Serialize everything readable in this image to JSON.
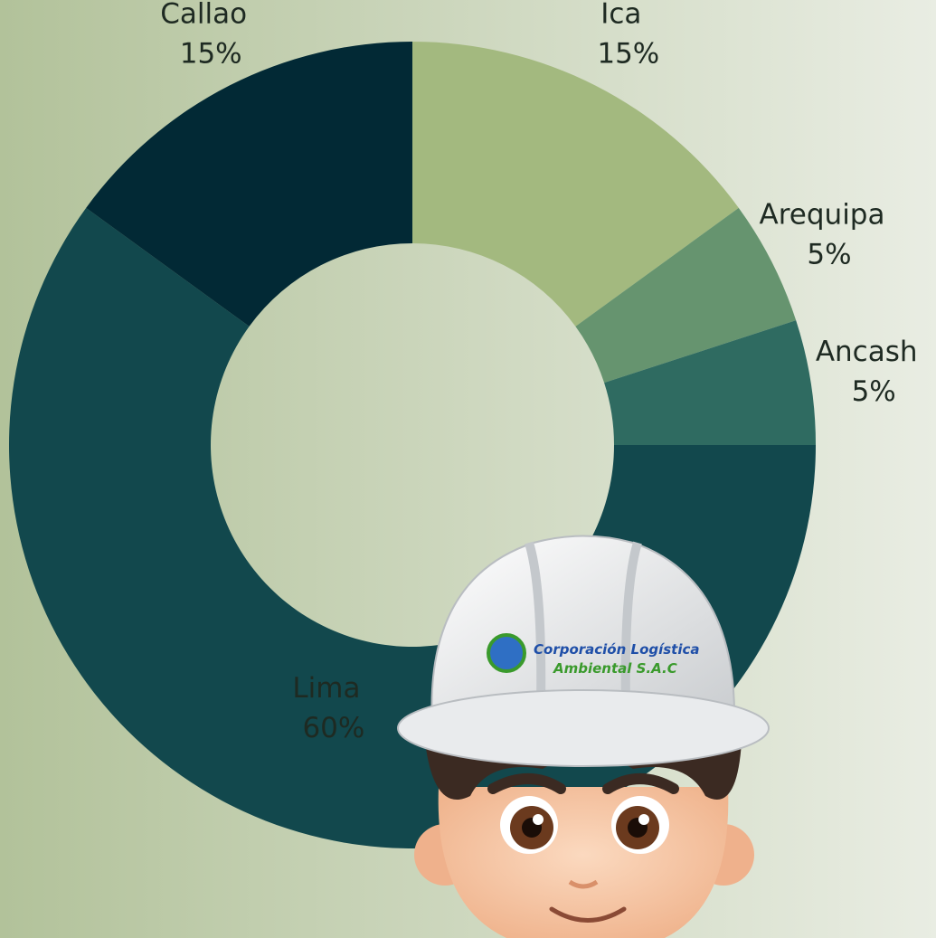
{
  "chart_data": {
    "type": "donut",
    "categories": [
      "Ica",
      "Arequipa",
      "Ancash",
      "Lima",
      "Callao"
    ],
    "values": [
      15,
      5,
      5,
      60,
      15
    ],
    "value_labels": [
      "15%",
      "5%",
      "5%",
      "60%",
      "15%"
    ],
    "colors": [
      "#a3b97f",
      "#66946f",
      "#2f6b61",
      "#12484d",
      "#022935"
    ]
  },
  "illustration": {
    "logo_lines": [
      "Corporación Logística",
      "Ambiental S.A.C"
    ]
  }
}
